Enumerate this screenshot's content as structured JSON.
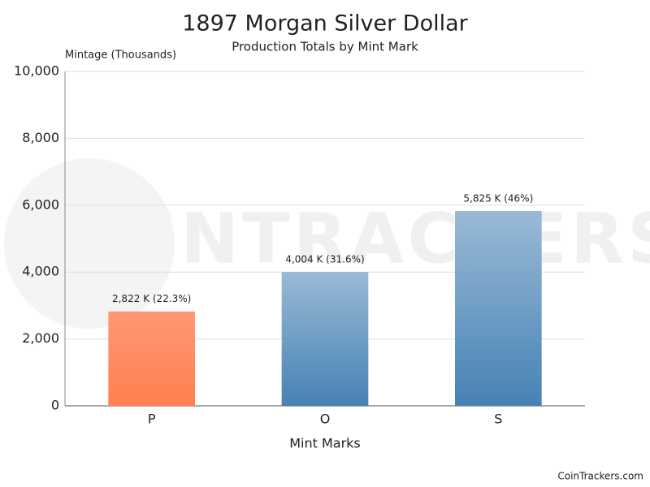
{
  "chart_data": {
    "type": "bar",
    "title": "1897 Morgan Silver Dollar",
    "subtitle": "Production Totals by Mint Mark",
    "y_label": "Mintage (Thousands)",
    "x_label": "Mint Marks",
    "categories": [
      "P",
      "O",
      "S"
    ],
    "values": [
      2822,
      4004,
      5825
    ],
    "value_labels": [
      "2,822 K (22.3%)",
      "4,004 K (31.6%)",
      "5,825 K (46%)"
    ],
    "colors": [
      "#ff7f50",
      "#4682b4",
      "#4682b4"
    ],
    "ylim": [
      0,
      10000
    ],
    "yticks": [
      0,
      {
        "value": 2000,
        "label": "2,000"
      },
      {
        "value": 4000,
        "label": "4,000"
      },
      {
        "value": 6000,
        "label": "6,000"
      },
      {
        "value": 8000,
        "label": "8,000"
      },
      {
        "value": 10000,
        "label": "10,000"
      }
    ],
    "grid": true,
    "watermark": "COINTRACKERS",
    "footer": "CoinTrackers.com"
  }
}
